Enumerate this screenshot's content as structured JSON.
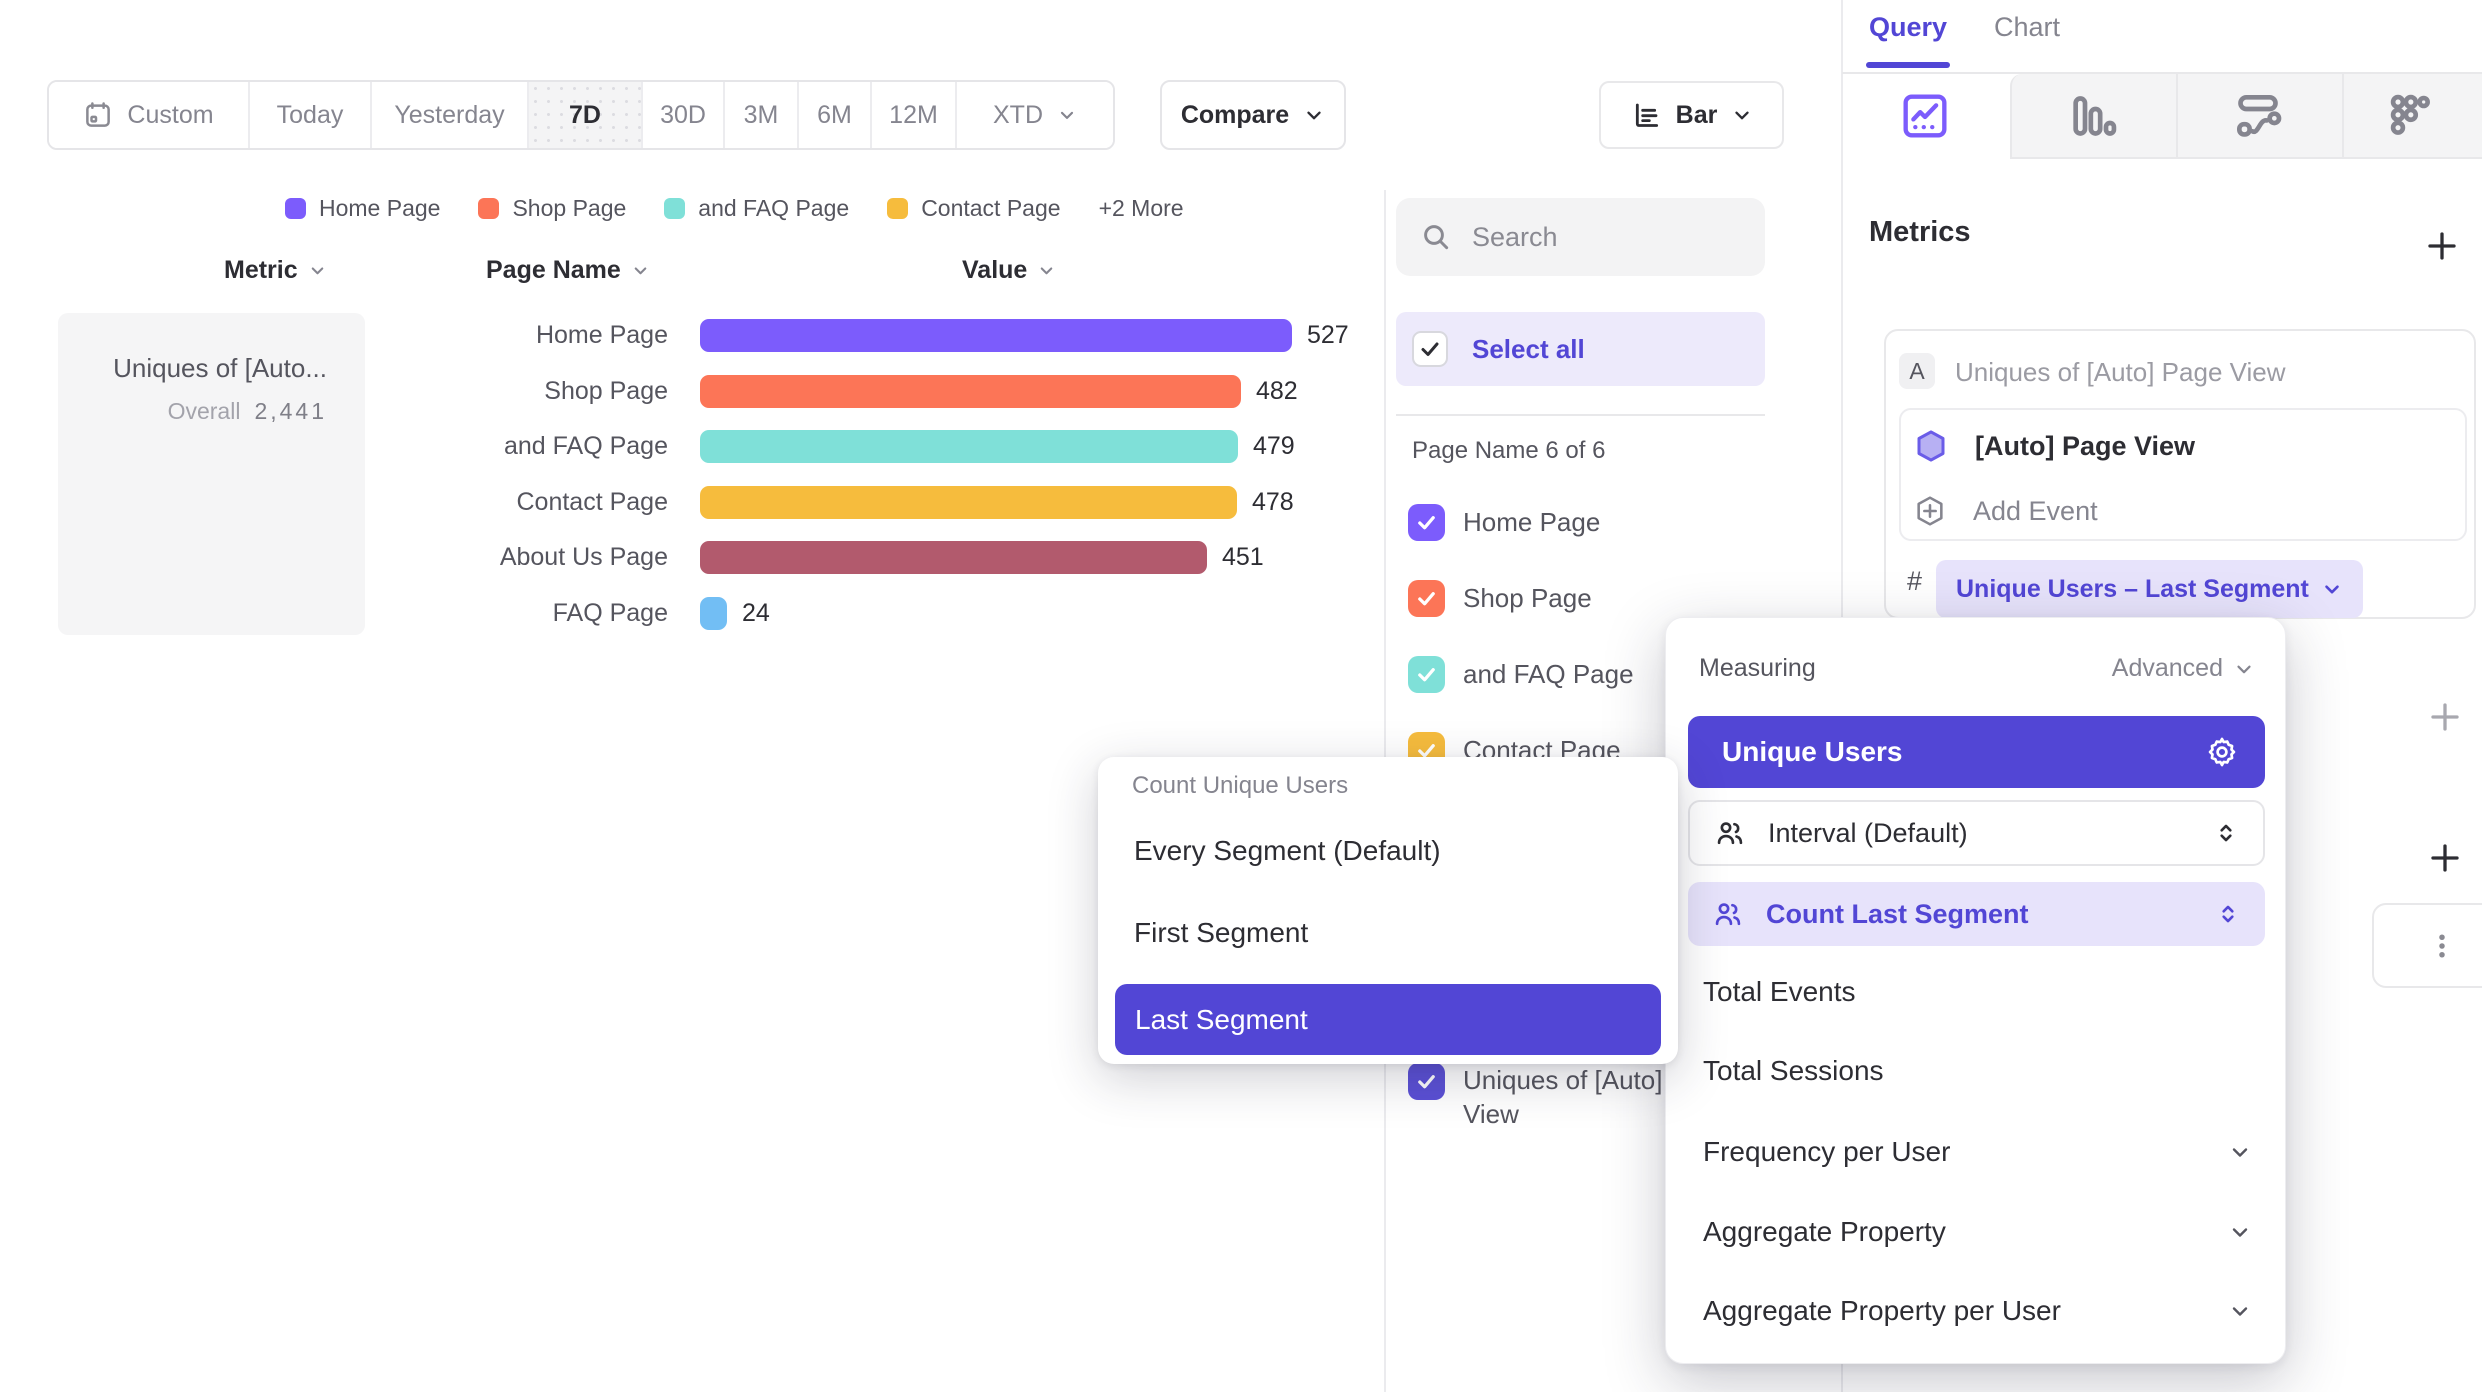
{
  "accent_color": "#5246D5",
  "toolbar": {
    "ranges": [
      "Custom",
      "Today",
      "Yesterday",
      "7D",
      "30D",
      "3M",
      "6M",
      "12M",
      "XTD"
    ],
    "active_range": "7D",
    "compare": "Compare",
    "chart_type": "Bar"
  },
  "chart_data": {
    "type": "bar",
    "orientation": "horizontal",
    "categories": [
      "Home Page",
      "Shop Page",
      "and FAQ Page",
      "Contact Page",
      "About Us Page",
      "FAQ Page"
    ],
    "values": [
      527,
      482,
      479,
      478,
      451,
      24
    ],
    "colors": [
      "#7C5CFC",
      "#FC7557",
      "#7FE0D8",
      "#F6BC3D",
      "#B25A6D",
      "#72BEF4"
    ],
    "xlim": [
      0,
      527
    ],
    "legend_items": [
      "Home Page",
      "Shop Page",
      "and FAQ Page",
      "Contact Page"
    ],
    "legend_more": "+2 More",
    "headers": {
      "metric": "Metric",
      "dimension": "Page Name",
      "value": "Value"
    },
    "metric_summary": {
      "name": "Uniques of [Auto...",
      "overall_label": "Overall",
      "overall_value": "2,441"
    }
  },
  "filter_panel": {
    "search_placeholder": "Search",
    "select_all": "Select all",
    "group_label": "Page Name 6 of 6",
    "items": [
      {
        "label": "Home Page",
        "color": "#7C5CFC"
      },
      {
        "label": "Shop Page",
        "color": "#FC7557"
      },
      {
        "label": "and FAQ Page",
        "color": "#7FE0D8"
      },
      {
        "label": "Contact Page",
        "color": "#F6BC3D"
      }
    ],
    "metric_item": {
      "label": "Uniques of [Auto] Page View",
      "color": "#5B50D6"
    }
  },
  "segment_dropdown": {
    "title": "Count Unique Users",
    "options": [
      "Every Segment (Default)",
      "First Segment",
      "Last Segment"
    ],
    "selected": "Last Segment"
  },
  "query_panel": {
    "tabs": [
      "Query",
      "Chart"
    ],
    "active_tab": "Query",
    "metrics_title": "Metrics",
    "metric": {
      "badge": "A",
      "label": "Uniques of [Auto] Page View",
      "event": "[Auto] Page View",
      "add_event": "Add Event",
      "hash": "#",
      "measure_pill": "Unique Users – Last Segment"
    }
  },
  "measuring_panel": {
    "title": "Measuring",
    "advanced": "Advanced",
    "selected": "Unique Users",
    "interval": "Interval (Default)",
    "count_last_segment": "Count Last Segment",
    "options": [
      "Total Events",
      "Total Sessions",
      "Frequency per User",
      "Aggregate Property",
      "Aggregate Property per User"
    ]
  }
}
